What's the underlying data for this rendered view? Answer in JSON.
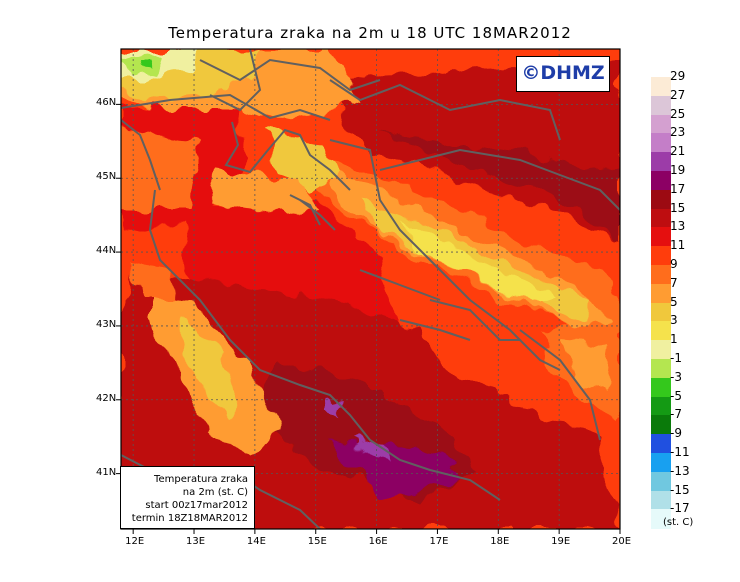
{
  "title": "Temperatura zraka na 2m u 18 UTC 18MAR2012",
  "brand": "©DHMZ",
  "info": {
    "line1": "Temperatura zraka",
    "line2": "na 2m (st. C)",
    "line3": "start 00z17mar2012",
    "line4": "termin 18Z18MAR2012"
  },
  "map": {
    "lat_labels": [
      "46N",
      "45N",
      "44N",
      "43N",
      "42N",
      "41N"
    ],
    "lon_labels": [
      "12E",
      "13E",
      "14E",
      "15E",
      "16E",
      "17E",
      "18E",
      "19E",
      "20E"
    ],
    "lat_values": [
      46,
      45,
      44,
      43,
      42,
      41
    ],
    "lon_values": [
      12,
      13,
      14,
      15,
      16,
      17,
      18,
      19,
      20
    ],
    "lon_range": [
      11.8,
      20.0
    ],
    "lat_range": [
      40.25,
      46.75
    ]
  },
  "colorbar": {
    "unit": "(st. C)",
    "labels": [
      "29",
      "27",
      "25",
      "23",
      "21",
      "19",
      "17",
      "15",
      "13",
      "11",
      "9",
      "7",
      "5",
      "3",
      "1",
      "-1",
      "-3",
      "-5",
      "-7",
      "-9",
      "-11",
      "-13",
      "-15",
      "-17"
    ],
    "colors": [
      "#fcebd6",
      "#dcc6d8",
      "#d4a0d0",
      "#c47ec8",
      "#9c3ca8",
      "#8c0064",
      "#9c0a12",
      "#be0d10",
      "#e50f0f",
      "#ff3d0c",
      "#ff6d1c",
      "#ff9c32",
      "#f0c83c",
      "#f5e24c",
      "#f0f0a0",
      "#b4e650",
      "#34c81c",
      "#149a14",
      "#0a7a0a",
      "#2050e0",
      "#18a0f0",
      "#70c8e0",
      "#b0e0e8",
      "#e6fafa"
    ]
  }
}
